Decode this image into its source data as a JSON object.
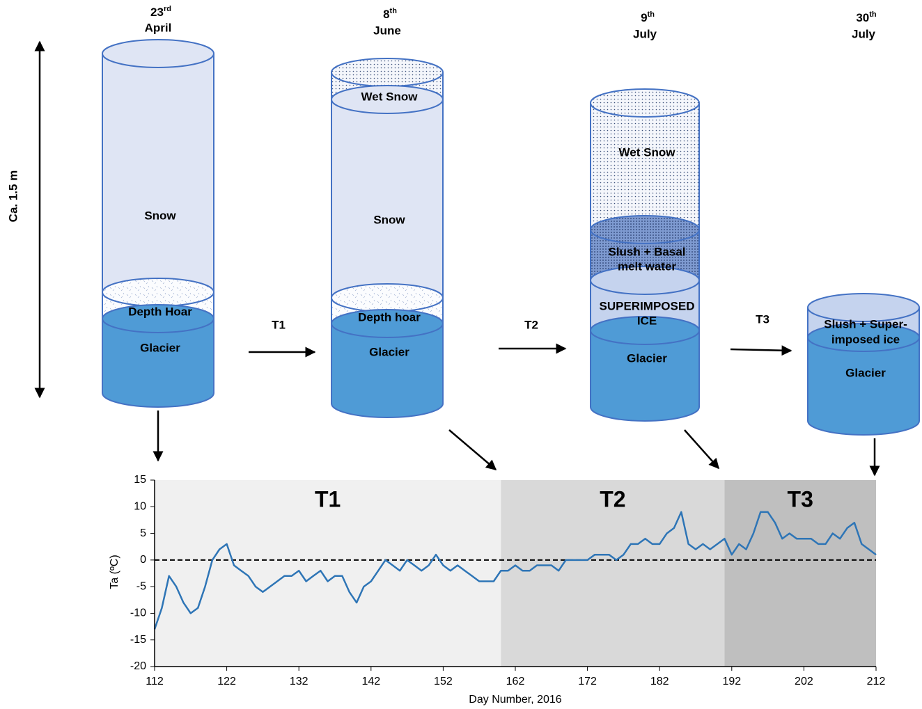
{
  "diagram": {
    "height_label": "Ca. 1.5 m",
    "columns": [
      {
        "date": {
          "day": "23",
          "suffix": "rd",
          "month": "April"
        },
        "layers": [
          {
            "label": [
              "Snow"
            ]
          },
          {
            "label": [
              "Depth Hoar"
            ]
          },
          {
            "label": [
              "Glacier"
            ]
          }
        ]
      },
      {
        "date": {
          "day": "8",
          "suffix": "th",
          "month": "June"
        },
        "layers": [
          {
            "label": [
              "Wet Snow"
            ]
          },
          {
            "label": [
              "Snow"
            ]
          },
          {
            "label": [
              "Depth hoar"
            ]
          },
          {
            "label": [
              "Glacier"
            ]
          }
        ]
      },
      {
        "date": {
          "day": "9",
          "suffix": "th",
          "month": "July"
        },
        "layers": [
          {
            "label": [
              "Wet Snow"
            ]
          },
          {
            "label": [
              "Slush + Basal",
              "melt water"
            ]
          },
          {
            "label": [
              "SUPERIMPOSED",
              "ICE"
            ]
          },
          {
            "label": [
              "Glacier"
            ]
          }
        ]
      },
      {
        "date": {
          "day": "30",
          "suffix": "th",
          "month": "July"
        },
        "layers": [
          {
            "label": [
              "Slush + Super-",
              "imposed ice"
            ]
          },
          {
            "label": [
              "Glacier"
            ]
          }
        ]
      }
    ],
    "transitions": [
      "T1",
      "T2",
      "T3"
    ]
  },
  "chart_data": {
    "type": "line",
    "x_label": "Day Number, 2016",
    "y_label": "Ta (ºC)",
    "x": [
      112,
      113,
      114,
      115,
      116,
      117,
      118,
      119,
      120,
      121,
      122,
      123,
      124,
      125,
      126,
      127,
      128,
      129,
      130,
      131,
      132,
      133,
      134,
      135,
      136,
      137,
      138,
      139,
      140,
      141,
      142,
      143,
      144,
      145,
      146,
      147,
      148,
      149,
      150,
      151,
      152,
      153,
      154,
      155,
      156,
      157,
      158,
      159,
      160,
      161,
      162,
      163,
      164,
      165,
      166,
      167,
      168,
      169,
      170,
      171,
      172,
      173,
      174,
      175,
      176,
      177,
      178,
      179,
      180,
      181,
      182,
      183,
      184,
      185,
      186,
      187,
      188,
      189,
      190,
      191,
      192,
      193,
      194,
      195,
      196,
      197,
      198,
      199,
      200,
      201,
      202,
      203,
      204,
      205,
      206,
      207,
      208,
      209,
      210,
      211,
      212
    ],
    "values": [
      -13,
      -9,
      -3,
      -5,
      -8,
      -10,
      -9,
      -5,
      0,
      2,
      3,
      -1,
      -2,
      -3,
      -5,
      -6,
      -5,
      -4,
      -3,
      -3,
      -2,
      -4,
      -3,
      -2,
      -4,
      -3,
      -3,
      -6,
      -8,
      -5,
      -4,
      -2,
      0,
      -1,
      -2,
      0,
      -1,
      -2,
      -1,
      1,
      -1,
      -2,
      -1,
      -2,
      -3,
      -4,
      -4,
      -4,
      -2,
      -2,
      -1,
      -2,
      -2,
      -1,
      -1,
      -1,
      -2,
      0,
      0,
      0,
      0,
      1,
      1,
      1,
      0,
      1,
      3,
      3,
      4,
      3,
      3,
      5,
      6,
      9,
      3,
      2,
      3,
      2,
      3,
      4,
      1,
      3,
      2,
      5,
      9,
      9,
      7,
      4,
      5,
      4,
      4,
      4,
      3,
      3,
      5,
      4,
      6,
      7,
      3,
      2,
      1
    ],
    "color": "#2e75b6",
    "xlim": [
      112,
      212
    ],
    "ylim": [
      -20,
      15
    ],
    "xticks": [
      112,
      122,
      132,
      142,
      152,
      162,
      172,
      182,
      192,
      202,
      212
    ],
    "yticks": [
      -20,
      -15,
      -10,
      -5,
      0,
      5,
      10,
      15
    ],
    "reference_line": 0,
    "regions": [
      {
        "label": "T1",
        "start": 112,
        "end": 160,
        "color": "#f0f0f0"
      },
      {
        "label": "T2",
        "start": 160,
        "end": 191,
        "color": "#d9d9d9"
      },
      {
        "label": "T3",
        "start": 191,
        "end": 212,
        "color": "#bfbfbf"
      }
    ]
  }
}
